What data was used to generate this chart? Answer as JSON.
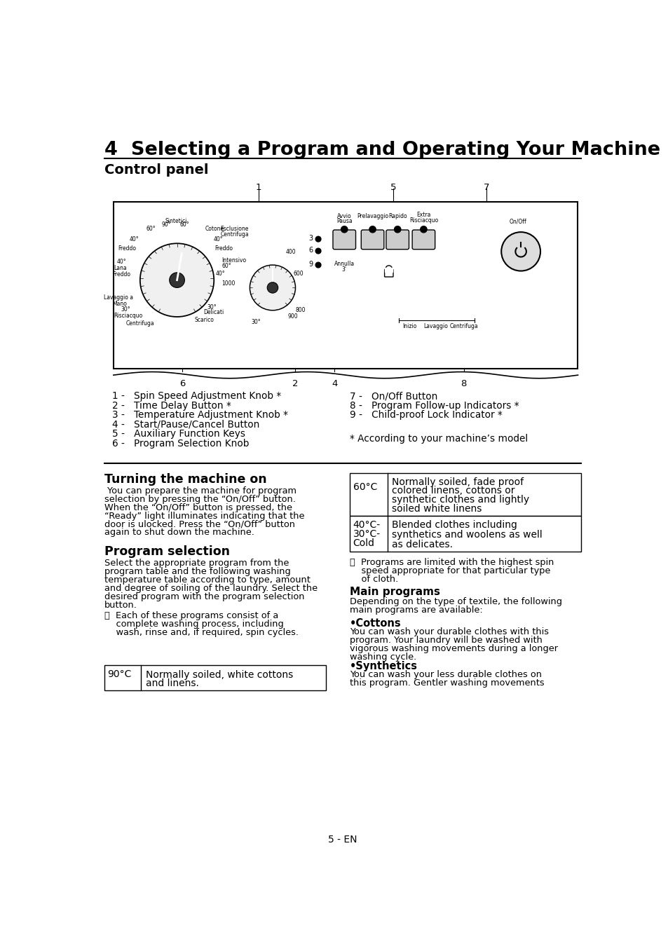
{
  "title": "4  Selecting a Program and Operating Your Machine",
  "subtitle": "Control panel",
  "bg_color": "#ffffff",
  "text_color": "#000000",
  "page_footer": "5 - EN",
  "left_col_items": [
    "1 -   Spin Speed Adjustment Knob *",
    "2 -   Time Delay Button *",
    "3 -   Temperature Adjustment Knob *",
    "4 -   Start/Pause/Cancel Button",
    "5 -   Auxiliary Function Keys",
    "6 -   Program Selection Knob"
  ],
  "right_col_items": [
    "7 -   On/Off Button",
    "8 -   Program Follow-up Indicators *",
    "9 -   Child-proof Lock Indicator *"
  ],
  "footnote": "* According to your machine’s model",
  "section1_title": "Turning the machine on",
  "section1_lines": [
    " You can prepare the machine for program",
    "selection by pressing the “On/Off” button.",
    "When the “On/Off” button is pressed, the",
    "“Ready” light illuminates indicating that the",
    "door is ulocked. Press the “On/Off” button",
    "again to shut down the machine."
  ],
  "section2_title": "Program selection",
  "section2_lines": [
    "Select the appropriate program from the",
    "program table and the following washing",
    "temperature table according to type, amount",
    "and degree of soiling of the laundry. Select the",
    "desired program with the program selection",
    "button."
  ],
  "section2_info_lines": [
    "ⓘ  Each of these programs consist of a",
    "    complete washing process, including",
    "    wash, rinse and, if required, spin cycles."
  ],
  "table_90_label": "90°C",
  "table_90_desc": [
    "Normally soiled, white cottons",
    "and linens."
  ],
  "table_60_label": "60°C",
  "table_60_desc": [
    "Normally soiled, fade proof",
    "colored linens, cottons or",
    "synthetic clothes and lightly",
    "soiled white linens"
  ],
  "table_40_labels": [
    "40°C-",
    "30°C-",
    "Cold"
  ],
  "table_40_desc": [
    "Blended clothes including",
    "synthetics and woolens as well",
    "as delicates."
  ],
  "right_info_lines": [
    "ⓘ  Programs are limited with the highest spin",
    "    speed appropriate for that particular type",
    "    of cloth."
  ],
  "main_programs_title": "Main programs",
  "main_programs_lines": [
    "Depending on the type of textile, the following",
    "main programs are available:"
  ],
  "cottons_title": "•Cottons",
  "cottons_lines": [
    "You can wash your durable clothes with this",
    "program. Your laundry will be washed with",
    "vigorous washing movements during a longer",
    "washing cycle."
  ],
  "synthetics_title": "•Synthetics",
  "synthetics_lines": [
    "You can wash your less durable clothes on",
    "this program. Gentler washing movements"
  ],
  "dial1_labels_left": [
    "Sintetici",
    "60°",
    "40°",
    "Freddo",
    "40°",
    "Lana",
    "Freddo",
    "Lavaggio a",
    "Mano",
    "30°",
    "Risciacquo",
    "Centrifuga"
  ],
  "dial1_labels_top": [
    "90°",
    "60°"
  ],
  "dial1_labels_right": [
    "Cotone",
    "40°",
    "Freddo",
    "Intensivo",
    "60°",
    "40°",
    "1000",
    "30°",
    "Delicati",
    "Scarico"
  ],
  "esclusione": [
    "Esclusione",
    "Centrifuga"
  ],
  "speed_labels": [
    "400",
    "600",
    "800",
    "900"
  ],
  "panel_buttons_labels": [
    "Avvio",
    "Pausa",
    "Prelavaggio",
    "Rapido",
    "Extra",
    "Risciacquo",
    "On/Off"
  ],
  "panel_bottom_labels": [
    "Inizio",
    "Lavaggio",
    "Centrifuga"
  ],
  "annulla": [
    "Annulla",
    "3'"
  ]
}
